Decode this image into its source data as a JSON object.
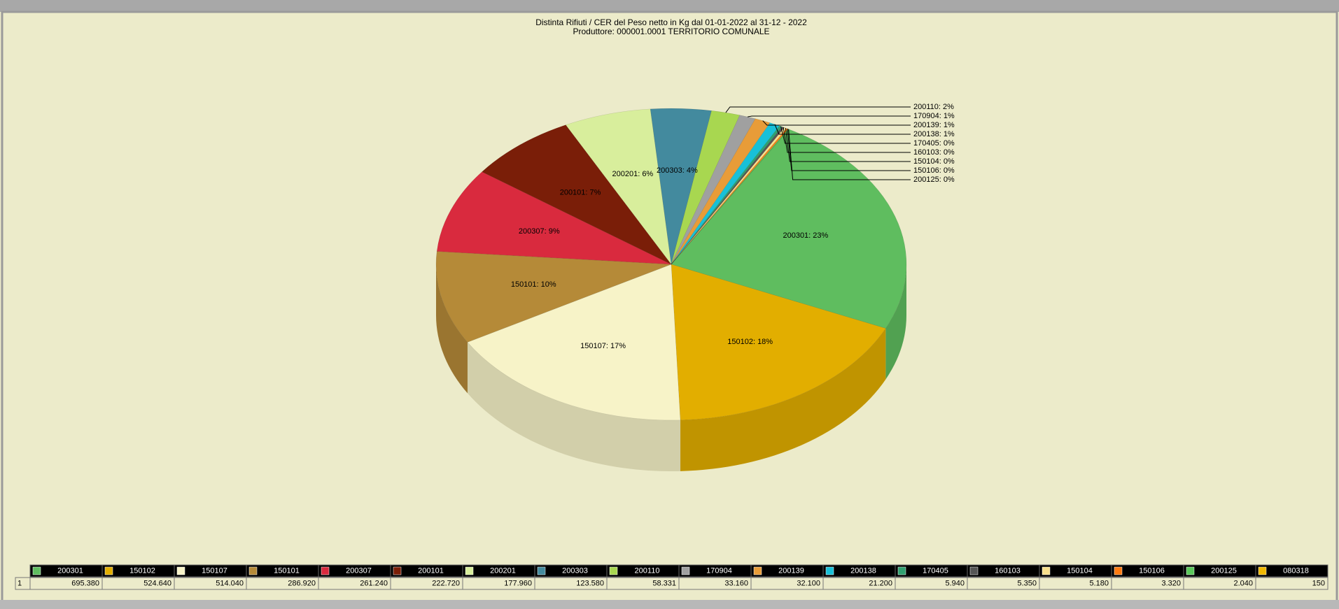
{
  "chart_data": {
    "type": "pie",
    "title": "Distinta Rifiuti / CER  del Peso netto in Kg dal 01-01-2022 al 31-12 - 2022",
    "subtitle": "Produttore: 000001.0001 TERRITORIO COMUNALE",
    "categories": [
      "200301",
      "150102",
      "150107",
      "150101",
      "200307",
      "200101",
      "200201",
      "200303",
      "200110",
      "170904",
      "200139",
      "200138",
      "170405",
      "160103",
      "150104",
      "150106",
      "200125",
      "080318"
    ],
    "values": [
      695380,
      524640,
      514040,
      286920,
      261240,
      222720,
      177960,
      123580,
      58331,
      33160,
      32100,
      21200,
      5940,
      5350,
      5180,
      3320,
      2040,
      150
    ],
    "value_labels": [
      "695.380",
      "524.640",
      "514.040",
      "286.920",
      "261.240",
      "222.720",
      "177.960",
      "123.580",
      "58.331",
      "33.160",
      "32.100",
      "21.200",
      "5.940",
      "5.350",
      "5.180",
      "3.320",
      "2.040",
      "150"
    ],
    "slice_labels": [
      "200301: 23%",
      "150102: 18%",
      "150107: 17%",
      "150101: 10%",
      "200307: 9%",
      "200101: 7%",
      "200201: 6%",
      "200303: 4%",
      "200110: 2%",
      "170904: 1%",
      "200139: 1%",
      "200138: 1%",
      "170405: 0%",
      "160103: 0%",
      "150104: 0%",
      "150106: 0%",
      "200125: 0%",
      null
    ],
    "colors": [
      "#5fbd5f",
      "#e2ae00",
      "#f7f3c8",
      "#b58a38",
      "#d92a3e",
      "#7a1e08",
      "#d8ee9c",
      "#438a9e",
      "#a8d750",
      "#a0a0a0",
      "#e89c38",
      "#18c0d8",
      "#30a070",
      "#555555",
      "#f8e08c",
      "#ff7a10",
      "#5ac85a",
      "#f0b800"
    ],
    "table_row_label": "1"
  }
}
